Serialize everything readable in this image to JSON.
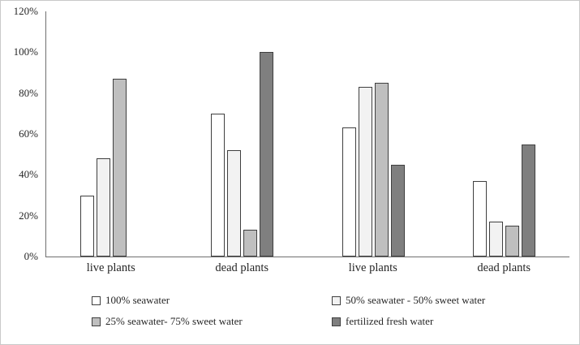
{
  "chart_data": {
    "type": "bar",
    "categories": [
      "live plants",
      "dead plants",
      "live plants",
      "dead plants"
    ],
    "series": [
      {
        "name": "100% seawater",
        "color": "#ffffff",
        "values": [
          30,
          70,
          63,
          37
        ]
      },
      {
        "name": "50% seawater - 50% sweet water",
        "color": "#f2f2f2",
        "values": [
          48,
          52,
          83,
          17
        ]
      },
      {
        "name": "25% seawater- 75% sweet water",
        "color": "#bfbfbf",
        "values": [
          87,
          13,
          85,
          15
        ]
      },
      {
        "name": "fertilized fresh water",
        "color": "#7f7f7f",
        "values": [
          0,
          100,
          45,
          55
        ]
      }
    ],
    "title": "",
    "xlabel": "",
    "ylabel": "",
    "ylim": [
      0,
      120
    ],
    "ytick_step": 20,
    "ytick_labels": [
      "0%",
      "20%",
      "40%",
      "60%",
      "80%",
      "100%",
      "120%"
    ],
    "grid": false,
    "legend_position": "bottom",
    "bar_border_color": "#3f3f3f"
  }
}
